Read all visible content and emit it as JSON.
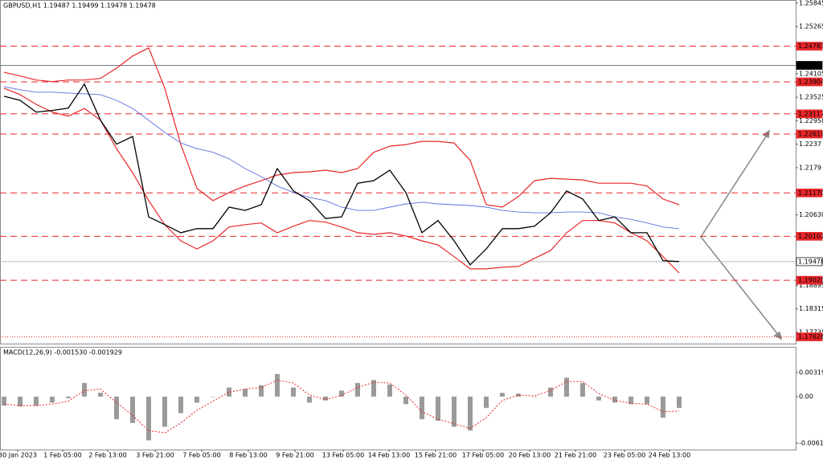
{
  "chart_data": [
    {
      "type": "line",
      "title": "GBPUSD,H1  1.19487 1.19499 1.19478 1.19478",
      "xlim": [
        -0.25,
        49.25
      ],
      "xticks": [
        {
          "value": 0.85,
          "label": "30 Jan 2023"
        },
        {
          "value": 3.65,
          "label": "1 Feb 05:00"
        },
        {
          "value": 6.45,
          "label": "2 Feb 13:00"
        },
        {
          "value": 9.4,
          "label": "3 Feb 21:00"
        },
        {
          "value": 12.3,
          "label": "7 Feb 05:00"
        },
        {
          "value": 15.2,
          "label": "8 Feb 13:00"
        },
        {
          "value": 18.1,
          "label": "9 Feb 21:00"
        },
        {
          "value": 21.1,
          "label": "13 Feb 05:00"
        },
        {
          "value": 23.95,
          "label": "14 Feb 13:00"
        },
        {
          "value": 26.85,
          "label": "15 Feb 21:00"
        },
        {
          "value": 29.8,
          "label": "17 Feb 05:00"
        },
        {
          "value": 32.7,
          "label": "20 Feb 13:00"
        },
        {
          "value": 35.55,
          "label": "21 Feb 21:00"
        },
        {
          "value": 38.6,
          "label": "23 Feb 05:00"
        },
        {
          "value": 41.4,
          "label": "24 Feb 13:00"
        }
      ],
      "ylim": [
        1.1746,
        1.2592
      ],
      "yticks": [
        1.25845,
        1.25265,
        1.24105,
        1.23525,
        {
          "value": 1.2295,
          "label": "1.22950"
        },
        1.2237,
        1.2179,
        1.2121,
        {
          "value": 1.2063,
          "label": "1.20630"
        },
        1.18895,
        1.18315,
        1.17735
      ],
      "levels": [
        1.24783,
        1.23904,
        1.23117,
        1.22619,
        {
          "value": 1.2117,
          "label": "1.21170"
        },
        1.20102,
        {
          "value": 1.1902,
          "label": "1.19020"
        }
      ],
      "level_color": "#e8262a",
      "resistance": 1.2431,
      "support": 1.17626,
      "last_price": 1.19478,
      "series": [
        {
          "color": "#e8262a",
          "width": 1.2,
          "values": [
            1.2414,
            1.2405,
            1.2395,
            1.2391,
            1.2395,
            1.2395,
            1.2399,
            1.2424,
            1.2454,
            1.2474,
            1.2375,
            1.2236,
            1.2128,
            1.2098,
            1.2118,
            1.2134,
            1.2147,
            1.2161,
            1.2167,
            1.2169,
            1.2173,
            1.2167,
            1.2177,
            1.2217,
            1.2232,
            1.2236,
            1.2244,
            1.2244,
            1.224,
            1.2197,
            1.2088,
            1.2082,
            1.2108,
            1.2147,
            1.2153,
            1.2151,
            1.2149,
            1.2141,
            1.2141,
            1.2141,
            1.2134,
            1.2102,
            1.2088
          ]
        },
        {
          "color": "#e8262a",
          "width": 1.2,
          "values": [
            1.2375,
            1.2359,
            1.2335,
            1.2316,
            1.2306,
            1.2325,
            1.2296,
            1.2226,
            1.2167,
            1.2098,
            1.2039,
            1.1999,
            1.1979,
            1.1999,
            1.2033,
            1.2039,
            1.2043,
            1.2019,
            1.2035,
            1.2049,
            1.2045,
            1.2033,
            1.2019,
            1.2015,
            1.2019,
            1.2011,
            1.1999,
            1.1989,
            1.196,
            1.193,
            1.193,
            1.1934,
            1.1936,
            1.1956,
            1.1975,
            1.2019,
            1.2049,
            1.2049,
            1.2043,
            1.2019,
            1.1999,
            1.196,
            1.192
          ]
        },
        {
          "color": "#5a6fe0",
          "width": 0.9,
          "values": [
            1.2379,
            1.2371,
            1.2365,
            1.2365,
            1.2363,
            1.2361,
            1.2359,
            1.2345,
            1.2325,
            1.2296,
            1.2266,
            1.224,
            1.2226,
            1.2217,
            1.2201,
            1.2177,
            1.2157,
            1.2134,
            1.2118,
            1.2106,
            1.2098,
            1.2082,
            1.2074,
            1.2074,
            1.2082,
            1.209,
            1.2094,
            1.209,
            1.2088,
            1.2086,
            1.2082,
            1.2074,
            1.207,
            1.2068,
            1.2068,
            1.207,
            1.207,
            1.2068,
            1.2058,
            1.2052,
            1.2043,
            1.2033,
            1.2029
          ]
        },
        {
          "color": "#000000",
          "width": 1.3,
          "values": [
            1.2355,
            1.2345,
            1.2316,
            1.232,
            1.2326,
            1.2385,
            1.2296,
            1.2237,
            1.2256,
            1.2058,
            1.2039,
            1.2019,
            1.2029,
            1.2029,
            1.2082,
            1.2074,
            1.2088,
            1.2177,
            1.2122,
            1.2098,
            1.2054,
            1.2058,
            1.2141,
            1.2147,
            1.2173,
            1.2118,
            1.2019,
            1.2049,
            1.1999,
            1.194,
            1.1979,
            1.2029,
            1.2029,
            1.2035,
            1.2068,
            1.2122,
            1.2102,
            1.2049,
            1.2058,
            1.2019,
            1.2019,
            1.195,
            1.1948
          ]
        }
      ]
    },
    {
      "type": "bar",
      "title": "MACD(12,26,9) -0.001530 -0.001929",
      "xlim": [
        -0.25,
        49.25
      ],
      "ylim": [
        -0.007024,
        0.006605
      ],
      "yticks": [
        0.003198,
        {
          "value": 0,
          "label": "0.00"
        },
        -0.006172
      ],
      "series": [
        {
          "color": "#9a9a9a",
          "style": "bars",
          "values": [
            -0.0012,
            -0.0013,
            -0.0012,
            -0.0008,
            -0.0002,
            0.0018,
            0.0005,
            -0.003,
            -0.0035,
            -0.0058,
            -0.004,
            -0.0022,
            -0.0008,
            0,
            0.0012,
            0.001,
            0.0015,
            0.003,
            0.0012,
            -0.0008,
            -0.0005,
            0.0008,
            0.0018,
            0.0022,
            0.0016,
            -0.001,
            -0.003,
            -0.0032,
            -0.004,
            -0.0045,
            -0.0015,
            0.0005,
            0.0004,
            0,
            0.0012,
            0.0025,
            0.0018,
            -0.0005,
            -0.0008,
            -0.001,
            -0.001,
            -0.0028,
            -0.0015
          ]
        },
        {
          "color": "#e8262a",
          "style": "dotted",
          "values": [
            -0.001,
            -0.0012,
            -0.0012,
            -0.001,
            -0.0006,
            0.0008,
            0.001,
            -0.0008,
            -0.0025,
            -0.0045,
            -0.0048,
            -0.0035,
            -0.0018,
            -0.0006,
            0.0006,
            0.001,
            0.0012,
            0.0022,
            0.0018,
            0.0002,
            -0.0004,
            0.0002,
            0.0012,
            0.0019,
            0.0018,
            0.0002,
            -0.002,
            -0.003,
            -0.0036,
            -0.0042,
            -0.0028,
            -0.0005,
            0.0002,
            0.0001,
            0.0008,
            0.002,
            0.002,
            0.0004,
            -0.0005,
            -0.0009,
            -0.001,
            -0.002,
            -0.0019
          ]
        }
      ]
    }
  ]
}
